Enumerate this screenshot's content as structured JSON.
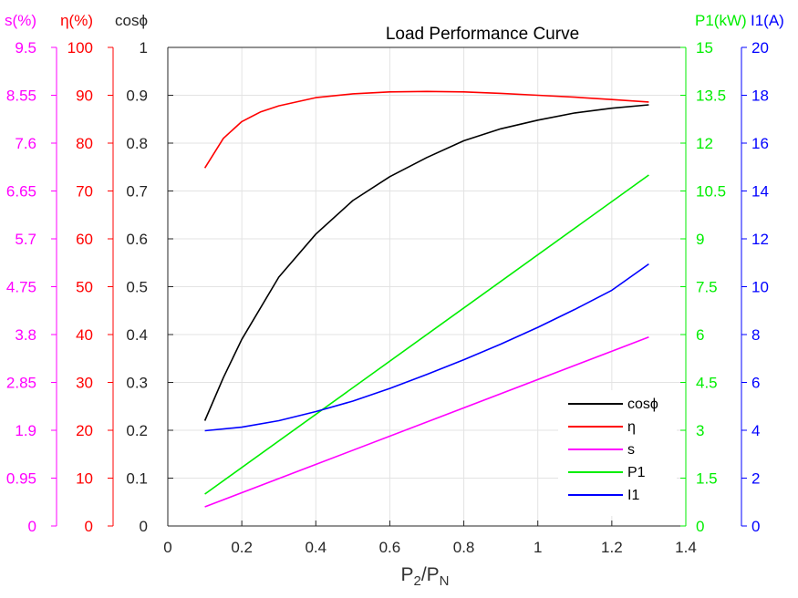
{
  "chart_data": {
    "type": "line",
    "title": "Load Performance Curve",
    "x": {
      "label_base": "P",
      "label_sub1": "2",
      "label_slash": "/P",
      "label_sub2": "N",
      "lim": [
        0,
        1.4
      ],
      "ticks": [
        0,
        0.2,
        0.4,
        0.6,
        0.8,
        1,
        1.2,
        1.4
      ],
      "tick_labels": [
        "0",
        "0.2",
        "0.4",
        "0.6",
        "0.8",
        "1",
        "1.2",
        "1.4"
      ]
    },
    "grid": true,
    "legend_position": "bottom-right",
    "axes": [
      {
        "id": "s",
        "side": "left",
        "unit": "s(%)",
        "color": "#ff00ff",
        "lim": [
          0,
          9.5
        ],
        "tick_labels": [
          "0",
          "0.95",
          "1.9",
          "2.85",
          "3.8",
          "4.75",
          "5.7",
          "6.65",
          "7.6",
          "8.55",
          "9.5"
        ]
      },
      {
        "id": "eta",
        "side": "left",
        "unit": "η(%)",
        "color": "#ff0000",
        "lim": [
          0,
          100
        ],
        "tick_labels": [
          "0",
          "10",
          "20",
          "30",
          "40",
          "50",
          "60",
          "70",
          "80",
          "90",
          "100"
        ]
      },
      {
        "id": "cos",
        "side": "left",
        "unit": "cosϕ",
        "color": "#262626",
        "lim": [
          0,
          1
        ],
        "tick_labels": [
          "0",
          "0.1",
          "0.2",
          "0.3",
          "0.4",
          "0.5",
          "0.6",
          "0.7",
          "0.8",
          "0.9",
          "1"
        ]
      },
      {
        "id": "p1",
        "side": "right",
        "unit": "P1(kW)",
        "color": "#00ee00",
        "lim": [
          0,
          15
        ],
        "tick_labels": [
          "0",
          "1.5",
          "3",
          "4.5",
          "6",
          "7.5",
          "9",
          "10.5",
          "12",
          "13.5",
          "15"
        ]
      },
      {
        "id": "i1",
        "side": "right",
        "unit": "I1(A)",
        "color": "#0000ff",
        "lim": [
          0,
          20
        ],
        "tick_labels": [
          "0",
          "2",
          "4",
          "6",
          "8",
          "10",
          "12",
          "14",
          "16",
          "18",
          "20"
        ]
      }
    ],
    "series": [
      {
        "name": "cosϕ",
        "axis": "cos",
        "color": "#000000",
        "x": [
          0.1,
          0.15,
          0.2,
          0.3,
          0.4,
          0.5,
          0.6,
          0.7,
          0.8,
          0.9,
          1.0,
          1.1,
          1.2,
          1.3
        ],
        "y": [
          0.22,
          0.31,
          0.39,
          0.52,
          0.61,
          0.68,
          0.73,
          0.77,
          0.805,
          0.83,
          0.848,
          0.863,
          0.873,
          0.88
        ]
      },
      {
        "name": "η",
        "axis": "eta",
        "color": "#ff0000",
        "x": [
          0.1,
          0.15,
          0.2,
          0.25,
          0.3,
          0.4,
          0.5,
          0.6,
          0.7,
          0.8,
          0.9,
          1.0,
          1.1,
          1.2,
          1.3
        ],
        "y": [
          74.8,
          81,
          84.5,
          86.5,
          87.8,
          89.5,
          90.3,
          90.7,
          90.8,
          90.7,
          90.4,
          90.0,
          89.6,
          89.1,
          88.6
        ]
      },
      {
        "name": "s",
        "axis": "s",
        "color": "#ff00ff",
        "x": [
          0.1,
          1.3
        ],
        "y": [
          0.38,
          3.75
        ]
      },
      {
        "name": "P1",
        "axis": "p1",
        "color": "#00ee00",
        "x": [
          0.1,
          1.3
        ],
        "y": [
          1.0,
          11.0
        ]
      },
      {
        "name": "I1",
        "axis": "i1",
        "color": "#0000ff",
        "x": [
          0.1,
          0.2,
          0.3,
          0.4,
          0.5,
          0.6,
          0.7,
          0.8,
          0.9,
          1.0,
          1.1,
          1.2,
          1.3
        ],
        "y": [
          3.98,
          4.13,
          4.4,
          4.78,
          5.22,
          5.75,
          6.33,
          6.95,
          7.6,
          8.3,
          9.05,
          9.85,
          10.95
        ]
      }
    ]
  }
}
